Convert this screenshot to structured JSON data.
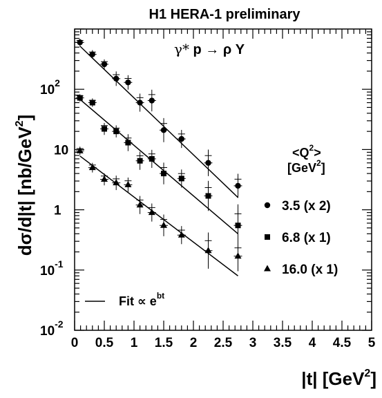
{
  "chart_data": {
    "type": "scatter",
    "title": "H1 HERA-1 preliminary",
    "process": {
      "gamma": "γ*",
      "rest": " p → ρ Y"
    },
    "xlabel": "|t| [GeV",
    "xlabel_sup": "2",
    "xlabel_end": "]",
    "ylabel": "dσ/d|t| [nb/GeV",
    "ylabel_sup": "2",
    "ylabel_end": "]",
    "xlim": [
      0,
      5
    ],
    "ylim": [
      0.01,
      1000
    ],
    "yscale": "log",
    "x_ticks": [
      "0",
      "0.5",
      "1",
      "1.5",
      "2",
      "2.5",
      "3",
      "3.5",
      "4",
      "4.5",
      "5"
    ],
    "y_ticks": [
      {
        "value": 0.01,
        "base": "10",
        "exp": "-2"
      },
      {
        "value": 0.1,
        "base": "10",
        "exp": "-1"
      },
      {
        "value": 1,
        "base": "1",
        "exp": ""
      },
      {
        "value": 10,
        "base": "10",
        "exp": ""
      },
      {
        "value": 100,
        "base": "10",
        "exp": "2"
      }
    ],
    "legend_header": {
      "line1": "<Q",
      "line1_sup": "2",
      "line1_end": ">",
      "line2": "[GeV",
      "line2_sup": "2",
      "line2_end": "]"
    },
    "fit_label": {
      "text": "Fit ∝ e",
      "sup": "bt"
    },
    "series": [
      {
        "name": "3.5 (x 2)",
        "marker": "circle",
        "x": [
          0.09,
          0.3,
          0.5,
          0.7,
          0.9,
          1.1,
          1.3,
          1.5,
          1.8,
          2.25,
          2.75
        ],
        "y": [
          600,
          380,
          260,
          150,
          130,
          60,
          65,
          21,
          15,
          6,
          2.5
        ],
        "err": [
          0.06,
          0.07,
          0.08,
          0.12,
          0.12,
          0.15,
          0.18,
          0.2,
          0.15,
          0.22,
          0.2
        ],
        "fit": {
          "x": [
            0.09,
            2.75
          ],
          "y": [
            520,
            1.6
          ]
        }
      },
      {
        "name": "6.8 (x 1)",
        "marker": "square",
        "x": [
          0.09,
          0.3,
          0.5,
          0.7,
          0.9,
          1.1,
          1.3,
          1.5,
          1.8,
          2.25,
          2.75
        ],
        "y": [
          72,
          60,
          22,
          20,
          13,
          6.5,
          7,
          4,
          3.3,
          1.7,
          0.55
        ],
        "err": [
          0.06,
          0.07,
          0.1,
          0.1,
          0.14,
          0.15,
          0.15,
          0.18,
          0.15,
          0.25,
          0.35
        ],
        "fit": {
          "x": [
            0.09,
            2.75
          ],
          "y": [
            68,
            0.4
          ]
        }
      },
      {
        "name": "16.0 (x 1)",
        "marker": "triangle",
        "x": [
          0.09,
          0.3,
          0.5,
          0.7,
          0.9,
          1.1,
          1.3,
          1.5,
          1.8,
          2.25,
          2.75
        ],
        "y": [
          9.5,
          5,
          3.2,
          2.8,
          2.6,
          1.2,
          0.9,
          0.55,
          0.38,
          0.21,
          0.17
        ],
        "err": [
          0.07,
          0.08,
          0.1,
          0.12,
          0.12,
          0.15,
          0.15,
          0.18,
          0.15,
          0.3,
          0.25
        ],
        "fit": {
          "x": [
            0.09,
            2.75
          ],
          "y": [
            7.8,
            0.08
          ]
        }
      }
    ],
    "grid": false,
    "legend_position": "right"
  }
}
